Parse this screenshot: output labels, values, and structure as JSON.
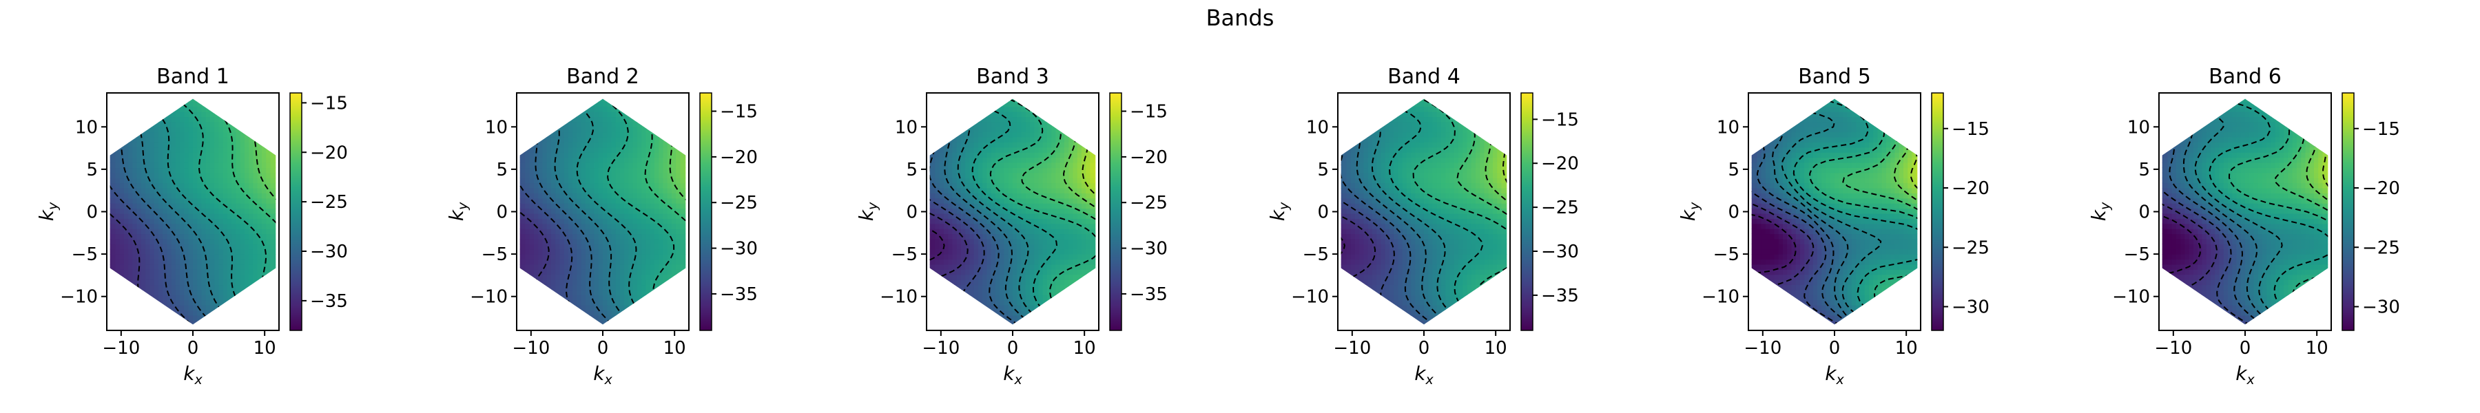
{
  "figure": {
    "suptitle": "Bands"
  },
  "colormap": "viridis",
  "chart_data": [
    {
      "type": "heatmap",
      "title": "Band 1",
      "xlabel_base": "k",
      "xlabel_sub": "x",
      "ylabel_base": "k",
      "ylabel_sub": "y",
      "xlim": [
        -12,
        12
      ],
      "ylim": [
        -14,
        14
      ],
      "xticks": [
        -10,
        0,
        10
      ],
      "yticks": [
        -10,
        -5,
        0,
        5,
        10
      ],
      "hexagon_vertices": [
        [
          0,
          13.3
        ],
        [
          11.55,
          6.65
        ],
        [
          11.55,
          -6.65
        ],
        [
          0,
          -13.3
        ],
        [
          -11.55,
          -6.65
        ],
        [
          -11.55,
          6.65
        ]
      ],
      "field": {
        "base": -27,
        "ax": 0.55,
        "ay": 0.35,
        "wave_amp": 0.8
      },
      "contour_levels": 11,
      "colorbar": {
        "vmin": -38,
        "vmax": -14,
        "ticks": [
          -15,
          -20,
          -25,
          -30,
          -35
        ]
      }
    },
    {
      "type": "heatmap",
      "title": "Band 2",
      "xlabel_base": "k",
      "xlabel_sub": "x",
      "ylabel_base": "k",
      "ylabel_sub": "y",
      "xlim": [
        -12,
        12
      ],
      "ylim": [
        -14,
        14
      ],
      "xticks": [
        -10,
        0,
        10
      ],
      "yticks": [
        -10,
        -5,
        0,
        5,
        10
      ],
      "hexagon_vertices": [
        [
          0,
          13.3
        ],
        [
          11.55,
          6.65
        ],
        [
          11.55,
          -6.65
        ],
        [
          0,
          -13.3
        ],
        [
          -11.55,
          -6.65
        ],
        [
          -11.55,
          6.65
        ]
      ],
      "field": {
        "base": -27,
        "ax": 0.6,
        "ay": 0.3,
        "wave_amp": 1.2
      },
      "contour_levels": 11,
      "colorbar": {
        "vmin": -39,
        "vmax": -13,
        "ticks": [
          -15,
          -20,
          -25,
          -30,
          -35
        ]
      }
    },
    {
      "type": "heatmap",
      "title": "Band 3",
      "xlabel_base": "k",
      "xlabel_sub": "x",
      "ylabel_base": "k",
      "ylabel_sub": "y",
      "xlim": [
        -12,
        12
      ],
      "ylim": [
        -14,
        14
      ],
      "xticks": [
        -10,
        0,
        10
      ],
      "yticks": [
        -10,
        -5,
        0,
        5,
        10
      ],
      "hexagon_vertices": [
        [
          0,
          13.3
        ],
        [
          11.55,
          6.65
        ],
        [
          11.55,
          -6.65
        ],
        [
          0,
          -13.3
        ],
        [
          -11.55,
          -6.65
        ],
        [
          -11.55,
          6.65
        ]
      ],
      "field": {
        "base": -26,
        "ax": 0.65,
        "ay": 0.38,
        "wave_amp": 2.2
      },
      "contour_levels": 12,
      "colorbar": {
        "vmin": -39,
        "vmax": -13,
        "ticks": [
          -15,
          -20,
          -25,
          -30,
          -35
        ]
      }
    },
    {
      "type": "heatmap",
      "title": "Band 4",
      "xlabel_base": "k",
      "xlabel_sub": "x",
      "ylabel_base": "k",
      "ylabel_sub": "y",
      "xlim": [
        -12,
        12
      ],
      "ylim": [
        -14,
        14
      ],
      "xticks": [
        -10,
        0,
        10
      ],
      "yticks": [
        -10,
        -5,
        0,
        5,
        10
      ],
      "hexagon_vertices": [
        [
          0,
          13.3
        ],
        [
          11.55,
          6.65
        ],
        [
          11.55,
          -6.65
        ],
        [
          0,
          -13.3
        ],
        [
          -11.55,
          -6.65
        ],
        [
          -11.55,
          6.65
        ]
      ],
      "field": {
        "base": -26,
        "ax": 0.62,
        "ay": 0.4,
        "wave_amp": 1.9
      },
      "contour_levels": 12,
      "colorbar": {
        "vmin": -39,
        "vmax": -12,
        "ticks": [
          -15,
          -20,
          -25,
          -30,
          -35
        ]
      }
    },
    {
      "type": "heatmap",
      "title": "Band 5",
      "xlabel_base": "k",
      "xlabel_sub": "x",
      "ylabel_base": "k",
      "ylabel_sub": "y",
      "xlim": [
        -12,
        12
      ],
      "ylim": [
        -14,
        14
      ],
      "xticks": [
        -10,
        0,
        10
      ],
      "yticks": [
        -10,
        -5,
        0,
        5,
        10
      ],
      "hexagon_vertices": [
        [
          0,
          13.3
        ],
        [
          11.55,
          6.65
        ],
        [
          11.55,
          -6.65
        ],
        [
          0,
          -13.3
        ],
        [
          -11.55,
          -6.65
        ],
        [
          -11.55,
          6.65
        ]
      ],
      "field": {
        "base": -23,
        "ax": 0.5,
        "ay": 0.32,
        "wave_amp": 2.4
      },
      "contour_levels": 12,
      "colorbar": {
        "vmin": -32,
        "vmax": -12,
        "ticks": [
          -15,
          -20,
          -25,
          -30
        ]
      }
    },
    {
      "type": "heatmap",
      "title": "Band 6",
      "xlabel_base": "k",
      "xlabel_sub": "x",
      "ylabel_base": "k",
      "ylabel_sub": "y",
      "xlim": [
        -12,
        12
      ],
      "ylim": [
        -14,
        14
      ],
      "xticks": [
        -10,
        0,
        10
      ],
      "yticks": [
        -10,
        -5,
        0,
        5,
        10
      ],
      "hexagon_vertices": [
        [
          0,
          13.3
        ],
        [
          11.55,
          6.65
        ],
        [
          11.55,
          -6.65
        ],
        [
          0,
          -13.3
        ],
        [
          -11.55,
          -6.65
        ],
        [
          -11.55,
          6.65
        ]
      ],
      "field": {
        "base": -23,
        "ax": 0.5,
        "ay": 0.32,
        "wave_amp": 2.0
      },
      "contour_levels": 12,
      "colorbar": {
        "vmin": -32,
        "vmax": -12,
        "ticks": [
          -15,
          -20,
          -25,
          -30
        ]
      }
    }
  ]
}
